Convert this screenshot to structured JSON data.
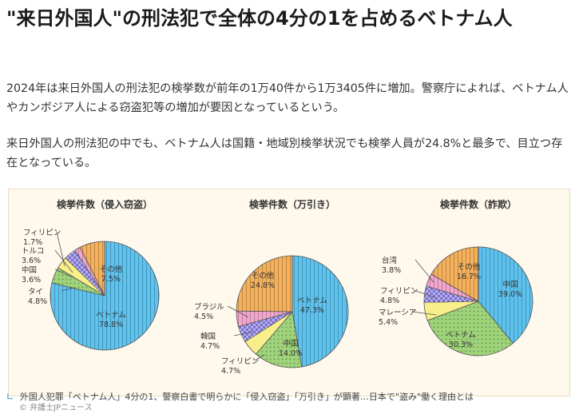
{
  "article": {
    "title": "\"来日外国人\"の刑法犯で全体の4分の1を占めるベトナム人",
    "paragraph1": "2024年は来日外国人の刑法犯の検挙数が前年の1万40件から1万3405件に増加。警察庁によれば、ベトナム人やカンボジア人による窃盗犯等の増加が要因となっているという。",
    "paragraph2": "来日外国人の刑法犯の中でも、ベトナム人は国籍・地域別検挙状況でも検挙人員が24.8%と最多で、目立つ存在となっている。",
    "caption": "外国人犯罪「ベトナム人」4分の1、警察白書で明らかに「侵入窃盗」「万引き」が顕著…日本で\"盗み\"働く理由とは",
    "caption_source": "© 弁護士JPニュース"
  },
  "chart_data": [
    {
      "type": "pie",
      "title": "検挙件数（侵入窃盗）",
      "slices": [
        {
          "label": "ベトナム",
          "value": 78.8,
          "color": "#5ec3ef"
        },
        {
          "label": "タイ",
          "value": 4.8,
          "color": "#9fd47a"
        },
        {
          "label": "中国",
          "value": 3.6,
          "color": "#f8ee8a"
        },
        {
          "label": "トルコ",
          "value": 3.6,
          "color": "#7b6fd2"
        },
        {
          "label": "フィリピン",
          "value": 1.7,
          "color": "#f3a7cf"
        },
        {
          "label": "その他",
          "value": 7.5,
          "color": "#f6b15c"
        }
      ]
    },
    {
      "type": "pie",
      "title": "検挙件数（万引き）",
      "slices": [
        {
          "label": "ベトナム",
          "value": 47.3,
          "color": "#5ec3ef"
        },
        {
          "label": "中国",
          "value": 14.0,
          "color": "#9fd47a"
        },
        {
          "label": "フィリピン",
          "value": 4.7,
          "color": "#f8ee8a"
        },
        {
          "label": "韓国",
          "value": 4.7,
          "color": "#7b6fd2"
        },
        {
          "label": "ブラジル",
          "value": 4.5,
          "color": "#f3a7cf"
        },
        {
          "label": "その他",
          "value": 24.8,
          "color": "#f6b15c"
        }
      ]
    },
    {
      "type": "pie",
      "title": "検挙件数（詐欺）",
      "slices": [
        {
          "label": "中国",
          "value": 39.0,
          "color": "#5ec3ef"
        },
        {
          "label": "ベトナム",
          "value": 30.3,
          "color": "#9fd47a"
        },
        {
          "label": "マレーシア",
          "value": 5.4,
          "color": "#f8ee8a"
        },
        {
          "label": "フィリピン",
          "value": 4.8,
          "color": "#7b6fd2"
        },
        {
          "label": "台湾",
          "value": 3.8,
          "color": "#f3a7cf"
        },
        {
          "label": "その他",
          "value": 16.7,
          "color": "#f6b15c"
        }
      ]
    }
  ]
}
